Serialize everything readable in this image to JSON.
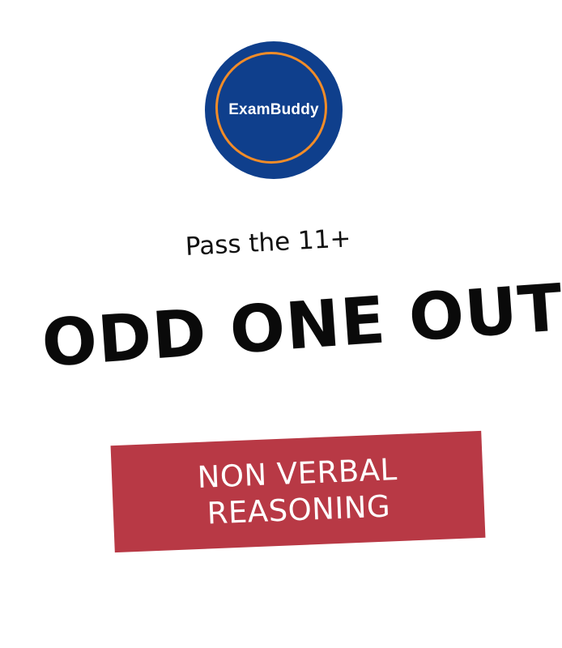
{
  "logo": {
    "text": "ExamBuddy",
    "colors": {
      "fill": "#0f3f8c",
      "ring": "#f28c28"
    }
  },
  "tagline": "Pass the 11+",
  "title": "ODD ONE OUT",
  "banner": {
    "line1": "NON VERBAL",
    "line2": "REASONING",
    "color": "#b83945"
  }
}
